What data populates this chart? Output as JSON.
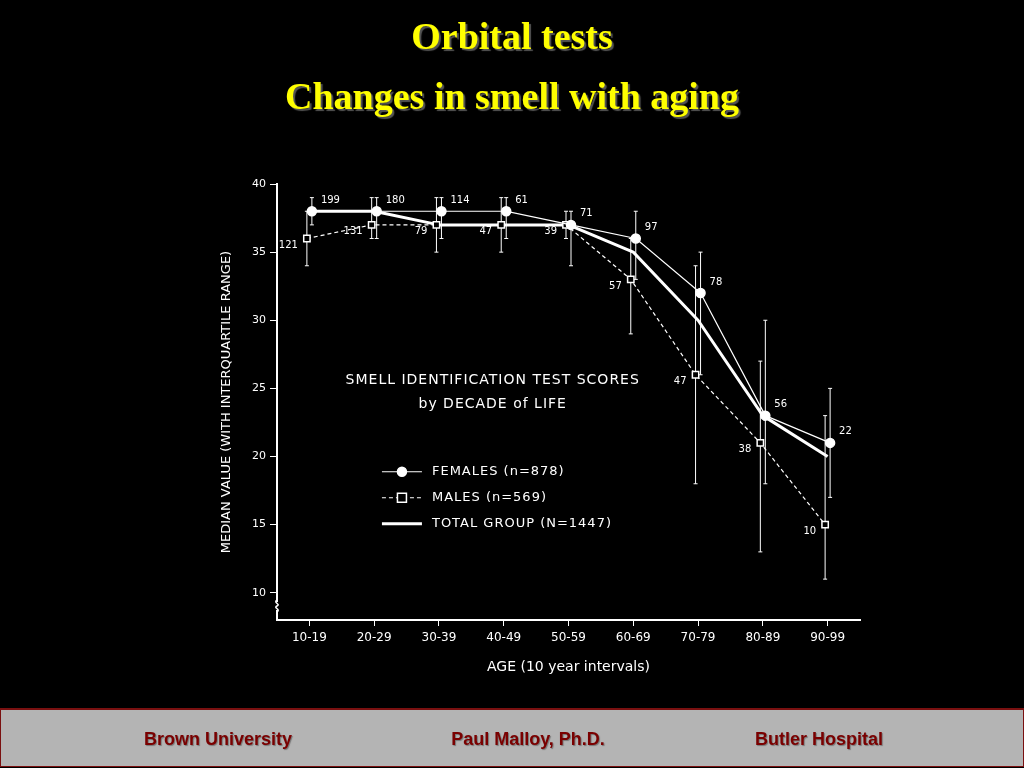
{
  "chart_data": {
    "type": "line",
    "title": "Orbital tests",
    "subtitle": "Changes in smell with aging",
    "xlabel": "AGE (10 year intervals)",
    "ylabel": "MEDIAN VALUE (WITH INTERQUARTILE RANGE)",
    "categories": [
      "10-19",
      "20-29",
      "30-39",
      "40-49",
      "50-59",
      "60-69",
      "70-79",
      "80-89",
      "90-99"
    ],
    "series": [
      {
        "name": "FEMALES (n=878)",
        "color": "#ffffff",
        "marker": "circle",
        "line_style": "solid",
        "values": [
          38,
          38,
          38,
          38,
          37,
          36,
          32,
          23,
          21
        ],
        "errors": [
          [
            37,
            39
          ],
          [
            36,
            39
          ],
          [
            36,
            39
          ],
          [
            36,
            39
          ],
          [
            34,
            38
          ],
          [
            33,
            38
          ],
          [
            26,
            35
          ],
          [
            18,
            30
          ],
          [
            17,
            25
          ]
        ]
      },
      {
        "name": "MALES (n=569)",
        "color": "#ffffff",
        "marker": "square",
        "line_style": "dashed",
        "values": [
          36,
          37,
          37,
          37,
          37,
          33,
          26,
          21,
          15
        ],
        "errors": [
          [
            34,
            38
          ],
          [
            36,
            39
          ],
          [
            35,
            39
          ],
          [
            35,
            39
          ],
          [
            36,
            38
          ],
          [
            29,
            36
          ],
          [
            18,
            34
          ],
          [
            13,
            27
          ],
          [
            11,
            23
          ]
        ]
      },
      {
        "name": "TOTAL GROUP (N=1447)",
        "color": "#ffffff",
        "marker": "none",
        "line_style": "solid",
        "values": [
          38,
          38,
          37,
          37,
          37,
          35,
          30,
          23,
          20
        ]
      }
    ],
    "ylim": [
      8,
      40
    ],
    "yticks": [
      10,
      15,
      20,
      25,
      30,
      35,
      40
    ],
    "legend": "bottom left",
    "annotations": [
      "SMELL IDENTIFICATION TEST SCORES",
      "by DECADE of LIFE",
      "Brown University",
      "Paul Malloy, Ph.D.",
      "Butler Hospital",
      {
        "text": "199",
        "x": "10-19",
        "y": 38
      },
      {
        "text": "180",
        "x": "20-29",
        "y": 38
      },
      {
        "text": "114",
        "x": "30-39",
        "y": 38
      },
      {
        "text": "61",
        "x": "40-49",
        "y": 38
      },
      {
        "text": "71",
        "x": "50-59",
        "y": 37
      },
      {
        "text": "97",
        "x": "60-69",
        "y": 36
      },
      {
        "text": "78",
        "x": "70-79",
        "y": 32
      },
      {
        "text": "56",
        "x": "80-89",
        "y": 23
      },
      {
        "text": "22",
        "x": "90-99",
        "y": 21
      },
      {
        "text": "121",
        "x": "10-19",
        "y": 36
      },
      {
        "text": "131",
        "x": "20-29",
        "y": 37
      },
      {
        "text": "79",
        "x": "30-39",
        "y": 37
      },
      {
        "text": "47",
        "x": "40-49",
        "y": 37
      },
      {
        "text": "39",
        "x": "50-59",
        "y": 37
      },
      {
        "text": "57",
        "x": "60-69",
        "y": 33
      },
      {
        "text": "47",
        "x": "70-79",
        "y": 26
      },
      {
        "text": "38",
        "x": "80-89",
        "y": 21
      },
      {
        "text": "10",
        "x": "90-99",
        "y": 15
      }
    ]
  }
}
